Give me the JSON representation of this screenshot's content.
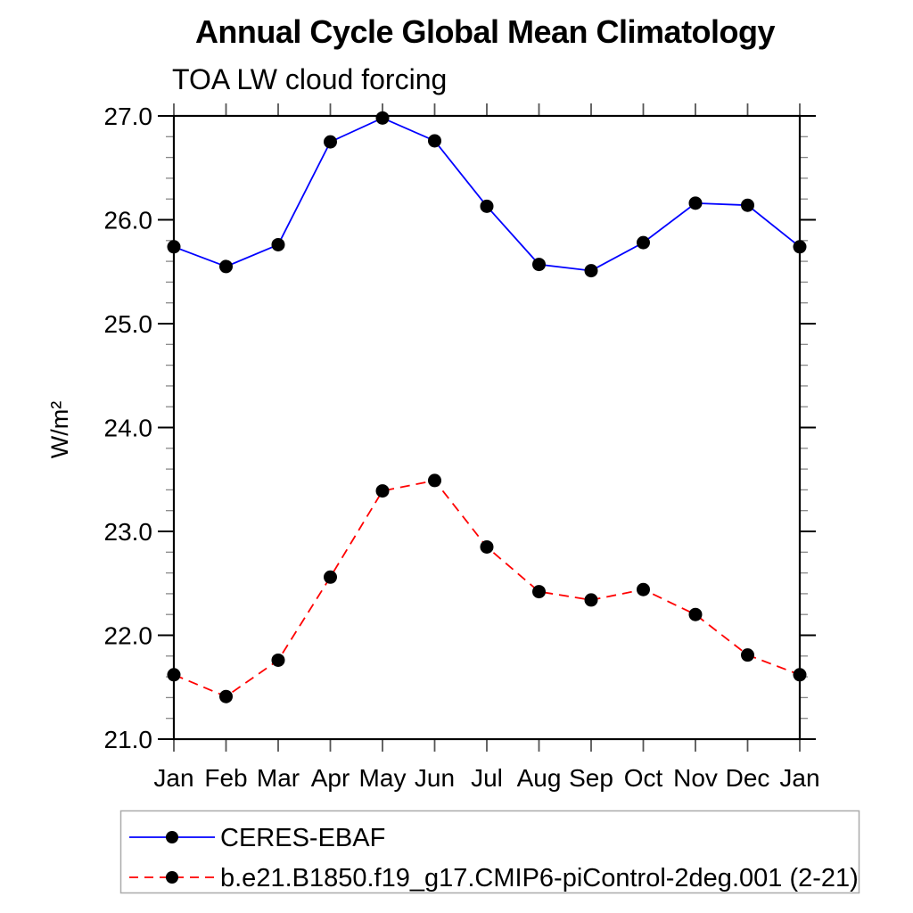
{
  "figure": {
    "background": "#ffffff",
    "axis_color": "#000000",
    "month_tick_color": "#555555",
    "minor_tick_color": "#888888",
    "marker_color": "#000000",
    "legend_border_color": "#aaaaaa"
  },
  "chart_data": {
    "type": "line",
    "title": "Annual Cycle Global Mean Climatology",
    "subtitle": "TOA LW cloud forcing",
    "xlabel": "",
    "ylabel": "W/m²",
    "x_tick_labels": [
      "Jan",
      "Feb",
      "Mar",
      "Apr",
      "May",
      "Jun",
      "Jul",
      "Aug",
      "Sep",
      "Oct",
      "Nov",
      "Dec",
      "Jan"
    ],
    "ylim": [
      21.0,
      27.0
    ],
    "y_major_ticks": [
      21.0,
      22.0,
      23.0,
      24.0,
      25.0,
      26.0,
      27.0
    ],
    "y_major_tick_labels": [
      "21.0",
      "22.0",
      "23.0",
      "24.0",
      "25.0",
      "26.0",
      "27.0"
    ],
    "y_minor_step": 0.2,
    "grid": false,
    "legend_position": "bottom-left",
    "series": [
      {
        "name": "CERES-EBAF",
        "color": "#0000ff",
        "line_style": "solid",
        "marker": "filled-circle",
        "values": [
          25.74,
          25.55,
          25.76,
          26.75,
          26.98,
          26.76,
          26.13,
          25.57,
          25.51,
          25.78,
          26.16,
          26.14,
          25.74
        ]
      },
      {
        "name": "b.e21.B1850.f19_g17.CMIP6-piControl-2deg.001 (2-21)",
        "color": "#ff0000",
        "line_style": "dashed",
        "marker": "filled-circle",
        "values": [
          21.62,
          21.41,
          21.76,
          22.56,
          23.39,
          23.49,
          22.85,
          22.42,
          22.34,
          22.44,
          22.2,
          21.81,
          21.62
        ]
      }
    ]
  }
}
